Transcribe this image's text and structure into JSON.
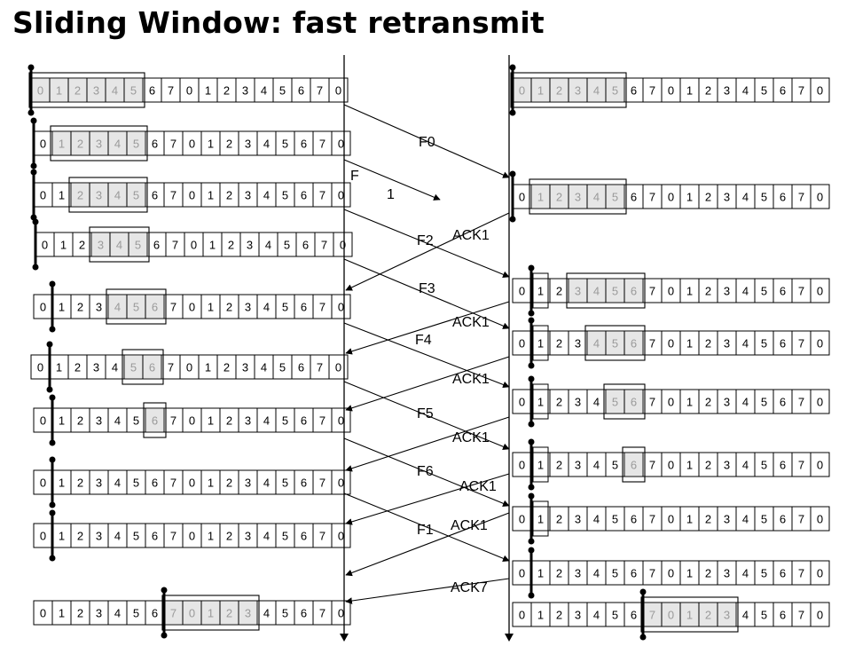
{
  "title": "Sliding Window: fast retransmit",
  "sequence": [
    "0",
    "1",
    "2",
    "3",
    "4",
    "5",
    "6",
    "7",
    "0",
    "1",
    "2",
    "3",
    "4",
    "5",
    "6",
    "7",
    "0"
  ],
  "sender_rows": [
    {
      "sent_from": 0,
      "win": [
        0,
        5
      ],
      "base_marker": 0,
      "highlight": [
        0,
        5
      ]
    },
    {
      "sent_from": 1,
      "win": [
        1,
        5
      ],
      "base_marker": 0,
      "highlight": [
        1,
        5
      ]
    },
    {
      "sent_from": 2,
      "win": [
        2,
        5
      ],
      "base_marker": 0,
      "highlight": [
        2,
        5
      ]
    },
    {
      "sent_from": 3,
      "win": [
        3,
        5
      ],
      "base_marker": 0,
      "highlight": [
        3,
        5
      ]
    },
    {
      "sent_from": 4,
      "win": [
        4,
        6
      ],
      "base_marker": 1,
      "highlight": [
        4,
        6
      ]
    },
    {
      "sent_from": 5,
      "win": [
        5,
        6
      ],
      "base_marker": 1,
      "highlight": [
        5,
        6
      ]
    },
    {
      "sent_from": 6,
      "win": [
        6,
        6
      ],
      "base_marker": 1,
      "highlight": [
        6,
        6
      ]
    },
    {
      "sent_from": 7,
      "win": null,
      "base_marker": 1,
      "highlight": null
    },
    {
      "sent_from": 7,
      "win": null,
      "base_marker": 1,
      "highlight": null
    },
    {
      "sent_from": 7,
      "win": [
        7,
        11
      ],
      "base_marker": 7,
      "highlight": [
        7,
        11
      ]
    }
  ],
  "receiver_rows": [
    {
      "win": [
        0,
        5
      ],
      "base_marker": 0,
      "highlight": [
        0,
        5
      ]
    },
    {
      "win": [
        1,
        5
      ],
      "base_marker": 0,
      "highlight": [
        1,
        5
      ]
    },
    {
      "win": [
        3,
        6
      ],
      "base_marker": 1,
      "highlight": [
        3,
        6
      ],
      "missing": 1
    },
    {
      "win": [
        4,
        6
      ],
      "base_marker": 1,
      "highlight": [
        4,
        6
      ],
      "missing": 1
    },
    {
      "win": [
        5,
        6
      ],
      "base_marker": 1,
      "highlight": [
        5,
        6
      ],
      "missing": 1
    },
    {
      "win": [
        6,
        6
      ],
      "base_marker": 1,
      "highlight": [
        6,
        6
      ],
      "missing": 1
    },
    {
      "win": null,
      "base_marker": 1,
      "highlight": null,
      "missing": 1
    },
    {
      "win": null,
      "base_marker": 1,
      "highlight": null
    },
    {
      "win": [
        7,
        11
      ],
      "base_marker": 7,
      "highlight": [
        7,
        11
      ]
    }
  ],
  "messages": [
    {
      "label": "F0",
      "kind": "frame"
    },
    {
      "label": "F",
      "kind": "frame-lost"
    },
    {
      "label": "1",
      "kind": "frame-lost-suffix"
    },
    {
      "label": "F2",
      "kind": "frame"
    },
    {
      "label": "ACK1",
      "kind": "ack"
    },
    {
      "label": "F3",
      "kind": "frame"
    },
    {
      "label": "ACK1",
      "kind": "ack"
    },
    {
      "label": "F4",
      "kind": "frame"
    },
    {
      "label": "ACK1",
      "kind": "ack"
    },
    {
      "label": "F5",
      "kind": "frame"
    },
    {
      "label": "ACK1",
      "kind": "ack"
    },
    {
      "label": "F6",
      "kind": "frame"
    },
    {
      "label": "ACK1",
      "kind": "ack"
    },
    {
      "label": "ACK1",
      "kind": "ack"
    },
    {
      "label": "F1",
      "kind": "frame-retransmit"
    },
    {
      "label": "ACK7",
      "kind": "ack"
    }
  ],
  "colors": {
    "ink": "#000000",
    "grey_digit": "#9a9a9a",
    "shade": "#e6e6e6"
  }
}
